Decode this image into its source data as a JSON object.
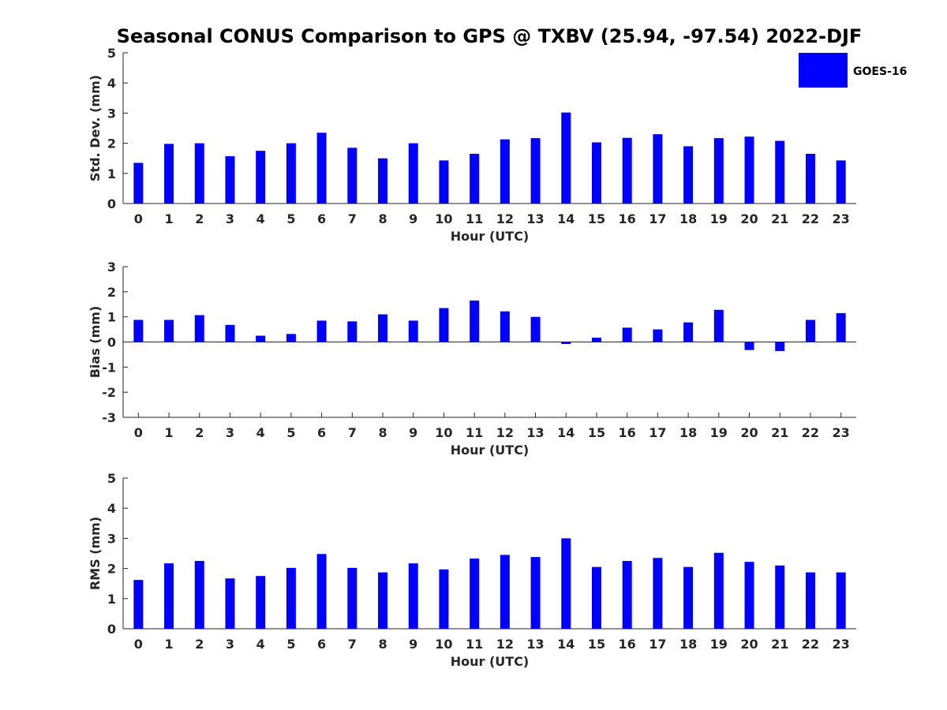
{
  "title": "Seasonal CONUS Comparison to GPS @ TXBV (25.94, -97.54) 2022-DJF",
  "legend": {
    "label": "GOES-16",
    "color": "#0000ff"
  },
  "chart_data": [
    {
      "type": "bar",
      "ylabel": "Std. Dev. (mm)",
      "xlabel": "Hour (UTC)",
      "ylim": [
        0,
        5
      ],
      "yticks": [
        "0",
        "1",
        "2",
        "3",
        "4",
        "5"
      ],
      "categories": [
        "0",
        "1",
        "2",
        "3",
        "4",
        "5",
        "6",
        "7",
        "8",
        "9",
        "10",
        "11",
        "12",
        "13",
        "14",
        "15",
        "16",
        "17",
        "18",
        "19",
        "20",
        "21",
        "22",
        "23"
      ],
      "series": [
        {
          "name": "GOES-16",
          "values": [
            1.35,
            1.98,
            2.0,
            1.57,
            1.75,
            2.0,
            2.35,
            1.85,
            1.5,
            2.0,
            1.43,
            1.65,
            2.13,
            2.17,
            3.02,
            2.03,
            2.18,
            2.3,
            1.9,
            2.17,
            2.22,
            2.08,
            1.65,
            1.43
          ]
        }
      ]
    },
    {
      "type": "bar",
      "ylabel": "Bias (mm)",
      "xlabel": "Hour (UTC)",
      "ylim": [
        -3,
        3
      ],
      "yticks": [
        "-3",
        "-2",
        "-1",
        "0",
        "1",
        "2",
        "3"
      ],
      "categories": [
        "0",
        "1",
        "2",
        "3",
        "4",
        "5",
        "6",
        "7",
        "8",
        "9",
        "10",
        "11",
        "12",
        "13",
        "14",
        "15",
        "16",
        "17",
        "18",
        "19",
        "20",
        "21",
        "22",
        "23"
      ],
      "series": [
        {
          "name": "GOES-16",
          "values": [
            0.88,
            0.88,
            1.07,
            0.68,
            0.25,
            0.32,
            0.85,
            0.82,
            1.1,
            0.85,
            1.35,
            1.65,
            1.22,
            1.0,
            -0.08,
            0.17,
            0.57,
            0.5,
            0.78,
            1.28,
            -0.32,
            -0.36,
            0.88,
            1.15
          ]
        }
      ]
    },
    {
      "type": "bar",
      "ylabel": "RMS (mm)",
      "xlabel": "Hour (UTC)",
      "ylim": [
        0,
        5
      ],
      "yticks": [
        "0",
        "1",
        "2",
        "3",
        "4",
        "5"
      ],
      "categories": [
        "0",
        "1",
        "2",
        "3",
        "4",
        "5",
        "6",
        "7",
        "8",
        "9",
        "10",
        "11",
        "12",
        "13",
        "14",
        "15",
        "16",
        "17",
        "18",
        "19",
        "20",
        "21",
        "22",
        "23"
      ],
      "series": [
        {
          "name": "GOES-16",
          "values": [
            1.62,
            2.17,
            2.25,
            1.67,
            1.75,
            2.02,
            2.48,
            2.02,
            1.87,
            2.17,
            1.97,
            2.33,
            2.45,
            2.38,
            3.0,
            2.05,
            2.25,
            2.35,
            2.05,
            2.52,
            2.22,
            2.1,
            1.87,
            1.87
          ]
        }
      ]
    }
  ]
}
